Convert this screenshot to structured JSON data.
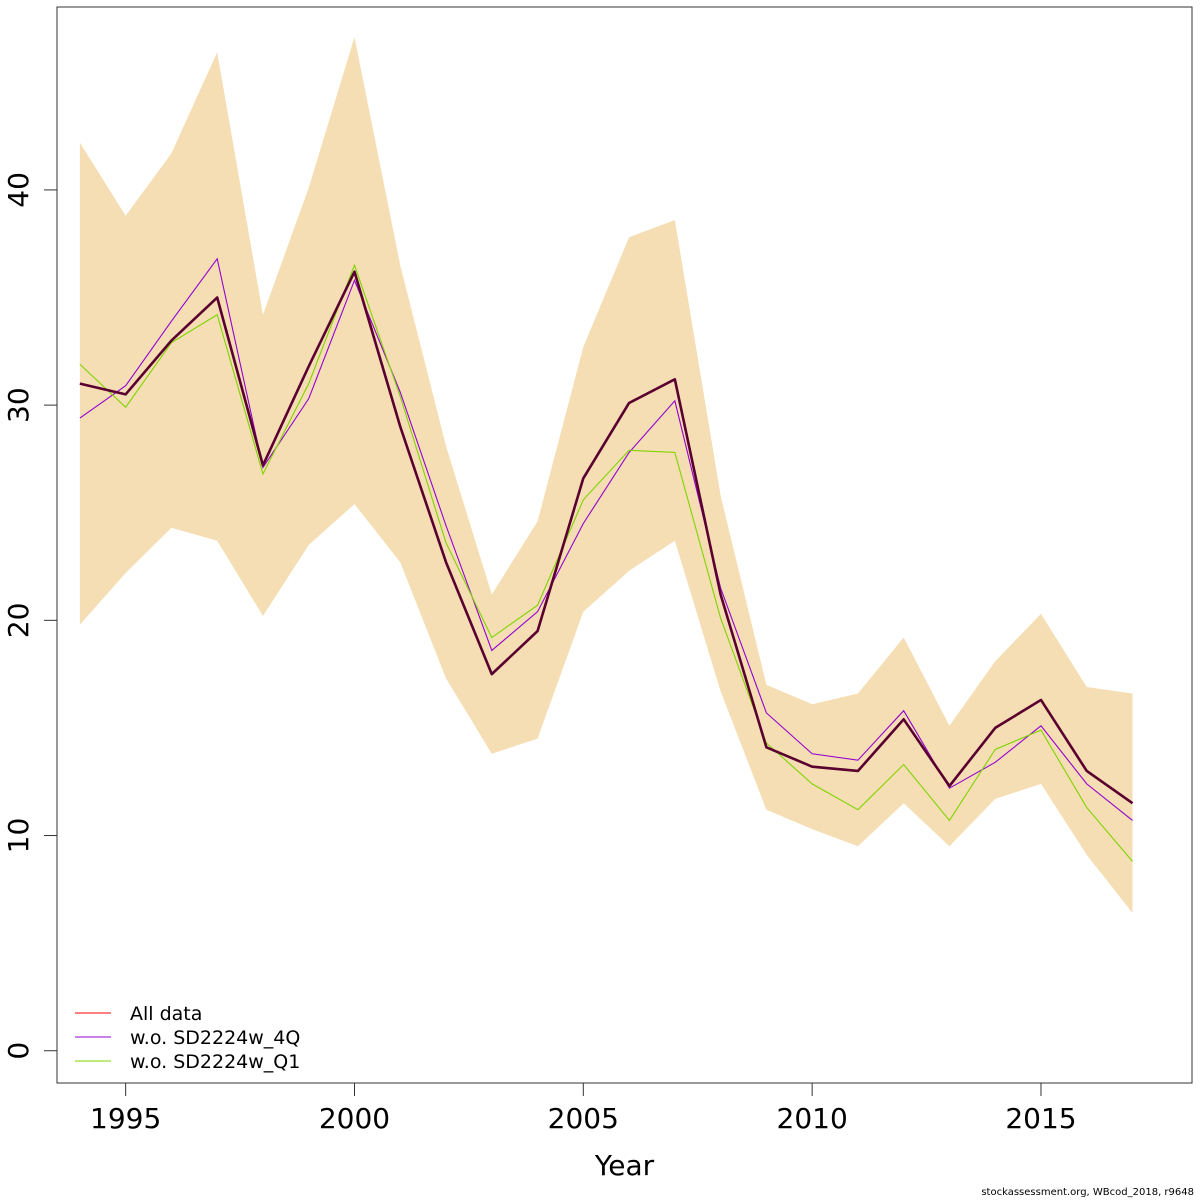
{
  "chart_data": {
    "type": "line",
    "xlabel": "Year",
    "ylabel": "",
    "xlim": [
      1993.5,
      2018.3
    ],
    "ylim": [
      -1.5,
      48.5
    ],
    "x_ticks": [
      1995,
      2000,
      2005,
      2010,
      2015
    ],
    "y_ticks": [
      0,
      10,
      20,
      30,
      40
    ],
    "grid": false,
    "legend_position": "bottom-left",
    "x": [
      1994,
      1995,
      1996,
      1997,
      1998,
      1999,
      2000,
      2001,
      2002,
      2003,
      2004,
      2005,
      2006,
      2007,
      2008,
      2009,
      2010,
      2011,
      2012,
      2013,
      2014,
      2015,
      2016,
      2017
    ],
    "band": {
      "color": "#F5DEB3",
      "lower": [
        19.8,
        22.2,
        24.3,
        23.7,
        20.2,
        23.5,
        25.4,
        22.7,
        17.3,
        13.8,
        14.5,
        20.4,
        22.3,
        23.7,
        16.7,
        11.2,
        10.3,
        9.5,
        11.5,
        9.5,
        11.7,
        12.4,
        9.1,
        6.4
      ],
      "upper": [
        42.2,
        38.8,
        41.7,
        46.4,
        34.2,
        40.1,
        47.1,
        36.5,
        28.1,
        21.2,
        24.6,
        32.7,
        37.8,
        38.6,
        25.8,
        17.0,
        16.1,
        16.6,
        19.2,
        15.1,
        18.1,
        20.3,
        16.9,
        16.6
      ]
    },
    "series": [
      {
        "name": "All data",
        "color": "#FF0000",
        "values": [
          31.0,
          30.5,
          33.0,
          35.0,
          27.2,
          31.8,
          36.2,
          29.0,
          22.7,
          17.5,
          19.5,
          26.6,
          30.1,
          31.2,
          21.2,
          14.1,
          13.2,
          13.0,
          15.4,
          12.3,
          15.0,
          16.3,
          13.0,
          11.5
        ]
      },
      {
        "name": "w.o. SD2224w_4Q",
        "color": "#9400D3",
        "values": [
          29.4,
          30.9,
          33.9,
          36.8,
          27.1,
          30.3,
          35.8,
          30.6,
          24.4,
          18.6,
          20.4,
          24.5,
          27.8,
          30.2,
          21.5,
          15.7,
          13.8,
          13.5,
          15.8,
          12.2,
          13.4,
          15.1,
          12.4,
          10.7
        ]
      },
      {
        "name": "w.o. SD2224w_Q1",
        "color": "#7FD400",
        "values": [
          31.9,
          29.9,
          32.9,
          34.2,
          26.8,
          31.0,
          36.5,
          30.4,
          23.6,
          19.2,
          20.7,
          25.6,
          27.9,
          27.8,
          20.1,
          14.3,
          12.4,
          11.2,
          13.3,
          10.7,
          14.0,
          14.9,
          11.3,
          8.8
        ]
      }
    ],
    "overlay_line": {
      "color": "#5A0030",
      "values": [
        31.0,
        30.5,
        33.0,
        35.0,
        27.2,
        31.8,
        36.2,
        29.0,
        22.7,
        17.5,
        19.5,
        26.6,
        30.1,
        31.2,
        21.2,
        14.1,
        13.2,
        13.0,
        15.4,
        12.3,
        15.0,
        16.3,
        13.0,
        11.5
      ]
    }
  },
  "footer": "stockassessment.org, WBcod_2018, r9648"
}
